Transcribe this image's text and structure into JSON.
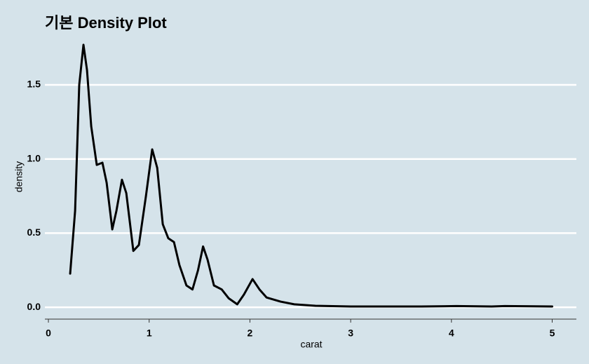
{
  "chart_data": {
    "type": "line",
    "title": "기본 Density Plot",
    "x_label": "carat",
    "y_label": "density",
    "x": [
      0.216,
      0.265,
      0.306,
      0.348,
      0.383,
      0.425,
      0.48,
      0.536,
      0.578,
      0.634,
      0.675,
      0.73,
      0.773,
      0.843,
      0.898,
      0.968,
      1.03,
      1.08,
      1.135,
      1.19,
      1.246,
      1.3,
      1.37,
      1.43,
      1.485,
      1.535,
      1.58,
      1.643,
      1.72,
      1.79,
      1.874,
      1.94,
      2.026,
      2.095,
      2.165,
      2.305,
      2.44,
      2.65,
      3.0,
      3.7,
      4.05,
      4.4,
      4.53,
      5.0
    ],
    "values": [
      0.227,
      0.65,
      1.5,
      1.77,
      1.6,
      1.22,
      0.96,
      0.975,
      0.84,
      0.525,
      0.65,
      0.86,
      0.77,
      0.38,
      0.42,
      0.75,
      1.065,
      0.94,
      0.56,
      0.465,
      0.44,
      0.285,
      0.147,
      0.12,
      0.25,
      0.41,
      0.32,
      0.147,
      0.12,
      0.06,
      0.02,
      0.085,
      0.19,
      0.12,
      0.066,
      0.038,
      0.02,
      0.01,
      0.005,
      0.005,
      0.008,
      0.005,
      0.008,
      0.005
    ],
    "color": "#000000",
    "xlim": [
      -0.035,
      5.24
    ],
    "xticks": [
      0,
      1,
      2,
      3,
      4,
      5
    ],
    "ylim": [
      -0.08,
      1.85
    ],
    "yticks": [
      {
        "value": 0,
        "label": "0.0"
      },
      {
        "value": 0.5,
        "label": "0.5"
      },
      {
        "value": 1,
        "label": "1.0"
      },
      {
        "value": 1.5,
        "label": "1.5"
      }
    ],
    "grid": true
  }
}
